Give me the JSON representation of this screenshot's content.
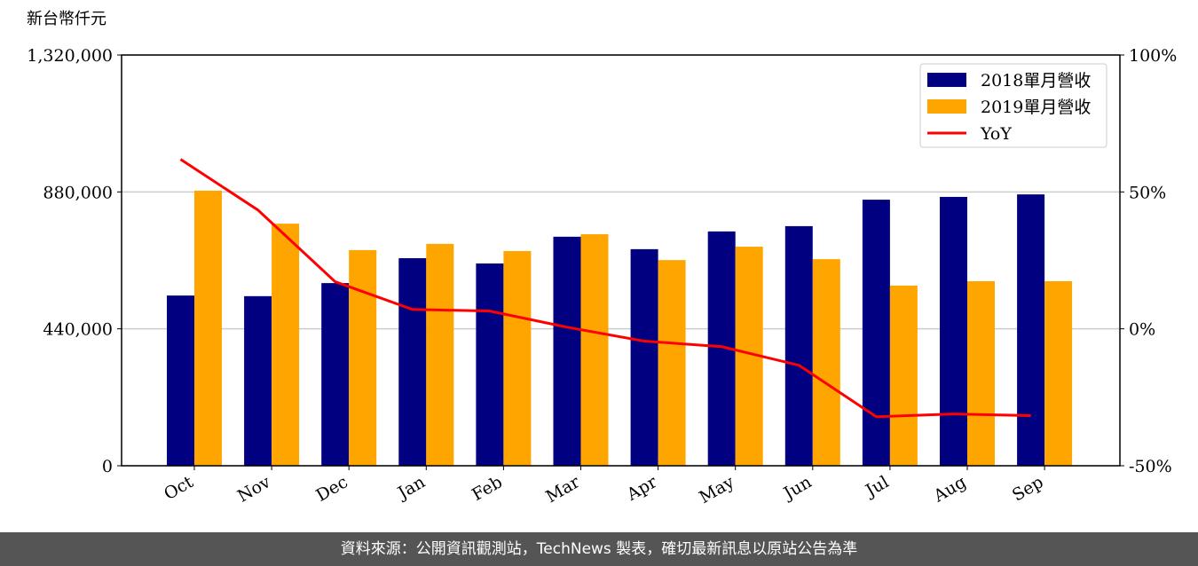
{
  "chart_data": {
    "type": "bar",
    "y_label": "新台幣仟元",
    "categories": [
      "Oct",
      "Nov",
      "Dec",
      "Jan",
      "Feb",
      "Mar",
      "Apr",
      "May",
      "Jun",
      "Jul",
      "Aug",
      "Sep"
    ],
    "series": [
      {
        "name": "2018單月營收",
        "color": "#000080",
        "values": [
          547000,
          545000,
          587000,
          667000,
          650000,
          736000,
          696000,
          753000,
          770000,
          855000,
          864000,
          872000
        ]
      },
      {
        "name": "2019單月營收",
        "color": "#ffa500",
        "values": [
          884000,
          778000,
          693000,
          713000,
          690000,
          744000,
          661000,
          704000,
          664000,
          579000,
          593000,
          593000
        ]
      },
      {
        "name": "YoY",
        "color": "#ff0000",
        "axis": "y2",
        "type": "line",
        "values": [
          61.9,
          43.4,
          17.2,
          7.1,
          6.5,
          0.6,
          -4.5,
          -6.5,
          -13.3,
          -32.1,
          -31.1,
          -31.7
        ]
      }
    ],
    "ylim": [
      0,
      1320000
    ],
    "yticks": [
      0,
      {
        "value": 440000,
        "label": "440,000"
      },
      {
        "value": 880000,
        "label": "880,000"
      },
      {
        "value": 1320000,
        "label": "1,320,000"
      }
    ],
    "y2lim": [
      -50,
      100
    ],
    "y2ticks": [
      {
        "value": -50,
        "label": "-50%"
      },
      {
        "value": 0,
        "label": "0%"
      },
      {
        "value": 50,
        "label": "50%"
      },
      {
        "value": 100,
        "label": "100%"
      }
    ],
    "grid": true,
    "legend": "upper right"
  },
  "footer": "資料來源：公開資訊觀測站，TechNews 製表，確切最新訊息以原站公告為準"
}
